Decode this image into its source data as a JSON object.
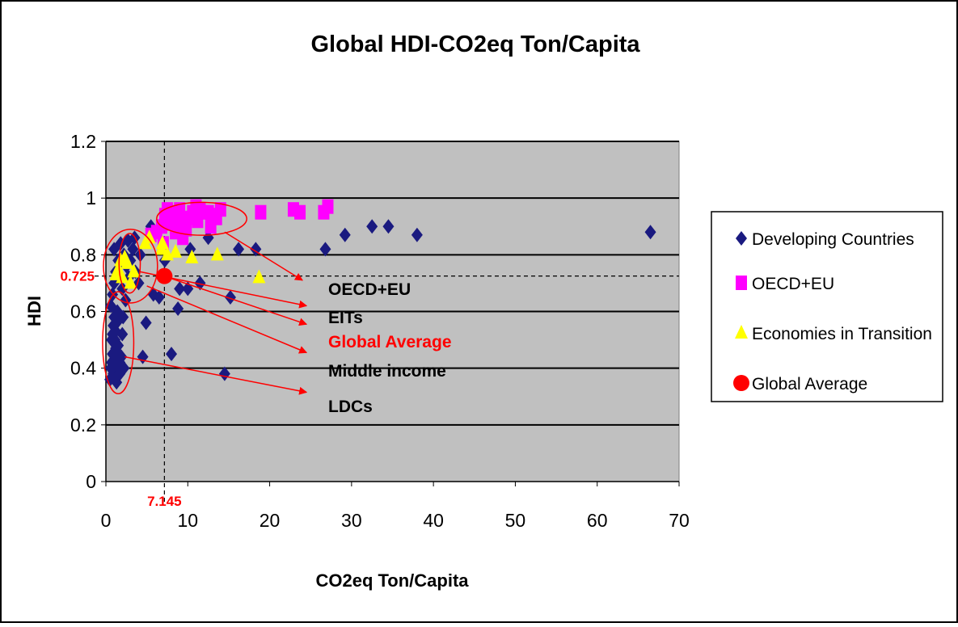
{
  "chart_data": {
    "type": "scatter",
    "title": "Global HDI-CO2eq Ton/Capita",
    "xlabel": "CO2eq Ton/Capita",
    "ylabel": "HDI",
    "xlim": [
      0,
      70
    ],
    "ylim": [
      0,
      1.2
    ],
    "x_ticks": [
      "0",
      "10",
      "20",
      "30",
      "40",
      "50",
      "60",
      "70"
    ],
    "y_ticks": [
      "0",
      "0.2",
      "0.4",
      "0.6",
      "0.8",
      "1",
      "1.2"
    ],
    "grid": "horizontal",
    "legend_position": "right",
    "colors": {
      "plot_background": "#c0c0c0",
      "developing": "#1a1a80",
      "oecd": "#ff00ff",
      "eit": "#ffff00",
      "global": "#ff0000",
      "annotation": "#ff0000"
    },
    "series": [
      {
        "name": "Developing Countries",
        "marker": "diamond",
        "color": "#1a1a80",
        "points": [
          [
            0.5,
            0.36
          ],
          [
            0.6,
            0.4
          ],
          [
            0.7,
            0.42
          ],
          [
            0.8,
            0.45
          ],
          [
            0.9,
            0.38
          ],
          [
            1.0,
            0.41
          ],
          [
            1.1,
            0.44
          ],
          [
            1.2,
            0.47
          ],
          [
            0.7,
            0.5
          ],
          [
            0.8,
            0.52
          ],
          [
            0.9,
            0.55
          ],
          [
            1.0,
            0.58
          ],
          [
            1.1,
            0.5
          ],
          [
            1.2,
            0.53
          ],
          [
            1.3,
            0.56
          ],
          [
            1.4,
            0.6
          ],
          [
            1.5,
            0.48
          ],
          [
            1.6,
            0.45
          ],
          [
            1.7,
            0.42
          ],
          [
            1.8,
            0.39
          ],
          [
            1.9,
            0.44
          ],
          [
            2.0,
            0.52
          ],
          [
            2.1,
            0.58
          ],
          [
            0.6,
            0.62
          ],
          [
            0.8,
            0.66
          ],
          [
            1.0,
            0.7
          ],
          [
            1.2,
            0.74
          ],
          [
            1.5,
            0.78
          ],
          [
            1.0,
            0.82
          ],
          [
            1.8,
            0.84
          ],
          [
            2.2,
            0.8
          ],
          [
            2.5,
            0.76
          ],
          [
            2.8,
            0.72
          ],
          [
            3.0,
            0.78
          ],
          [
            3.3,
            0.82
          ],
          [
            3.6,
            0.74
          ],
          [
            4.0,
            0.7
          ],
          [
            4.2,
            0.8
          ],
          [
            2.4,
            0.64
          ],
          [
            2.0,
            0.68
          ],
          [
            1.6,
            0.73
          ],
          [
            2.7,
            0.85
          ],
          [
            3.5,
            0.86
          ],
          [
            1.3,
            0.35
          ],
          [
            1.7,
            0.38
          ],
          [
            2.2,
            0.4
          ],
          [
            4.5,
            0.44
          ],
          [
            4.9,
            0.56
          ],
          [
            5.5,
            0.9
          ],
          [
            5.8,
            0.66
          ],
          [
            6.5,
            0.65
          ],
          [
            7.2,
            0.78
          ],
          [
            8.0,
            0.45
          ],
          [
            8.8,
            0.61
          ],
          [
            9.0,
            0.68
          ],
          [
            10.0,
            0.68
          ],
          [
            10.3,
            0.82
          ],
          [
            11.5,
            0.7
          ],
          [
            12.5,
            0.86
          ],
          [
            14.5,
            0.38
          ],
          [
            15.2,
            0.65
          ],
          [
            16.2,
            0.82
          ],
          [
            18.3,
            0.82
          ],
          [
            26.8,
            0.82
          ],
          [
            29.2,
            0.87
          ],
          [
            32.5,
            0.9
          ],
          [
            34.5,
            0.9
          ],
          [
            38.0,
            0.87
          ],
          [
            66.5,
            0.88
          ]
        ]
      },
      {
        "name": "OECD+EU",
        "marker": "square",
        "color": "#ff00ff",
        "points": [
          [
            5.5,
            0.87
          ],
          [
            6.2,
            0.88
          ],
          [
            6.8,
            0.9
          ],
          [
            7.2,
            0.94
          ],
          [
            7.5,
            0.96
          ],
          [
            7.9,
            0.91
          ],
          [
            8.3,
            0.92
          ],
          [
            8.6,
            0.95
          ],
          [
            9.0,
            0.96
          ],
          [
            9.4,
            0.86
          ],
          [
            9.8,
            0.89
          ],
          [
            10.2,
            0.93
          ],
          [
            10.6,
            0.95
          ],
          [
            11.0,
            0.97
          ],
          [
            11.5,
            0.96
          ],
          [
            12.0,
            0.95
          ],
          [
            12.5,
            0.95
          ],
          [
            13.0,
            0.94
          ],
          [
            13.5,
            0.93
          ],
          [
            14.0,
            0.96
          ],
          [
            7.0,
            0.84
          ],
          [
            8.5,
            0.88
          ],
          [
            9.3,
            0.92
          ],
          [
            11.2,
            0.92
          ],
          [
            12.8,
            0.9
          ],
          [
            18.9,
            0.95
          ],
          [
            22.9,
            0.96
          ],
          [
            23.7,
            0.95
          ],
          [
            26.6,
            0.95
          ],
          [
            27.1,
            0.97
          ]
        ]
      },
      {
        "name": "Economies in Transition",
        "marker": "triangle",
        "color": "#ffff00",
        "points": [
          [
            1.2,
            0.73
          ],
          [
            1.5,
            0.75
          ],
          [
            1.8,
            0.78
          ],
          [
            2.0,
            0.72
          ],
          [
            2.3,
            0.79
          ],
          [
            2.6,
            0.77
          ],
          [
            3.0,
            0.7
          ],
          [
            3.4,
            0.74
          ],
          [
            4.8,
            0.84
          ],
          [
            5.3,
            0.86
          ],
          [
            6.8,
            0.82
          ],
          [
            6.9,
            0.84
          ],
          [
            7.5,
            0.8
          ],
          [
            8.5,
            0.81
          ],
          [
            10.5,
            0.79
          ],
          [
            13.6,
            0.8
          ],
          [
            18.7,
            0.72
          ]
        ]
      },
      {
        "name": "Global Average",
        "marker": "circle",
        "color": "#ff0000",
        "points": [
          [
            7.145,
            0.725
          ]
        ]
      }
    ],
    "reference_lines": {
      "x_value": 7.145,
      "y_value": 0.725,
      "x_label": "7.145",
      "y_label": "0.725"
    },
    "annotations": [
      {
        "label": "OECD+EU",
        "color": "#000000",
        "ellipse": {
          "cx": 11.7,
          "cy": 0.927,
          "rx": 5.5,
          "ry": 0.058
        },
        "arrow_from": [
          14.5,
          0.88
        ],
        "arrow_to": [
          24.0,
          0.71
        ]
      },
      {
        "label": "EITs",
        "color": "#000000",
        "ellipse": {
          "cx": 2.9,
          "cy": 0.77,
          "rx": 1.3,
          "ry": 0.105
        },
        "arrow_from": [
          4.2,
          0.74
        ],
        "arrow_to": [
          24.5,
          0.62
        ]
      },
      {
        "label": "Global Average",
        "color": "#ff0000",
        "ellipse": null,
        "arrow_from": [
          7.6,
          0.72
        ],
        "arrow_to": [
          24.5,
          0.555
        ]
      },
      {
        "label": "Middle income",
        "color": "#000000",
        "ellipse": {
          "cx": 3.0,
          "cy": 0.76,
          "rx": 3.3,
          "ry": 0.13
        },
        "arrow_from": [
          5.0,
          0.69
        ],
        "arrow_to": [
          24.5,
          0.455
        ]
      },
      {
        "label": "LDCs",
        "color": "#000000",
        "ellipse": {
          "cx": 1.5,
          "cy": 0.49,
          "rx": 1.9,
          "ry": 0.18
        },
        "arrow_from": [
          2.3,
          0.44
        ],
        "arrow_to": [
          24.5,
          0.315
        ]
      }
    ]
  }
}
